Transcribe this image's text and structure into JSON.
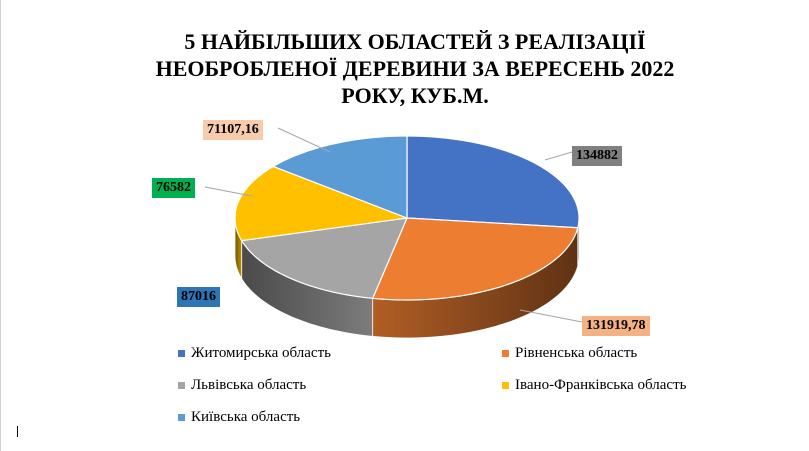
{
  "chart_data": {
    "type": "pie",
    "style": "3d",
    "title_lines": [
      "5 НАЙБІЛЬШИХ ОБЛАСТЕЙ З РЕАЛІЗАЦІЇ",
      "НЕОБРОБЛЕНОЇ ДЕРЕВИНИ ЗА ВЕРЕСЕНЬ 2022",
      "РОКУ, КУБ.М."
    ],
    "slices": [
      {
        "name": "Житомирська область",
        "value": 134882,
        "label": "134882",
        "color": "#4472C4",
        "label_bg": "#808080",
        "label_color": "#000000"
      },
      {
        "name": "Рівненська область",
        "value": 131919.78,
        "label": "131919,78",
        "color": "#ED7D31",
        "label_bg": "#F4B183",
        "label_color": "#000000"
      },
      {
        "name": "Львівська область",
        "value": 87016,
        "label": "87016",
        "color": "#A5A5A5",
        "label_bg": "#2E75B6",
        "label_color": "#000000"
      },
      {
        "name": "Івано-Франківська область",
        "value": 76582,
        "label": "76582",
        "color": "#FFC000",
        "label_bg": "#00B050",
        "label_color": "#000000"
      },
      {
        "name": "Київська область",
        "value": 71107.16,
        "label": "71107,16",
        "color": "#5B9BD5",
        "label_bg": "#F8CBAD",
        "label_color": "#000000"
      }
    ],
    "legend_position": "bottom"
  }
}
